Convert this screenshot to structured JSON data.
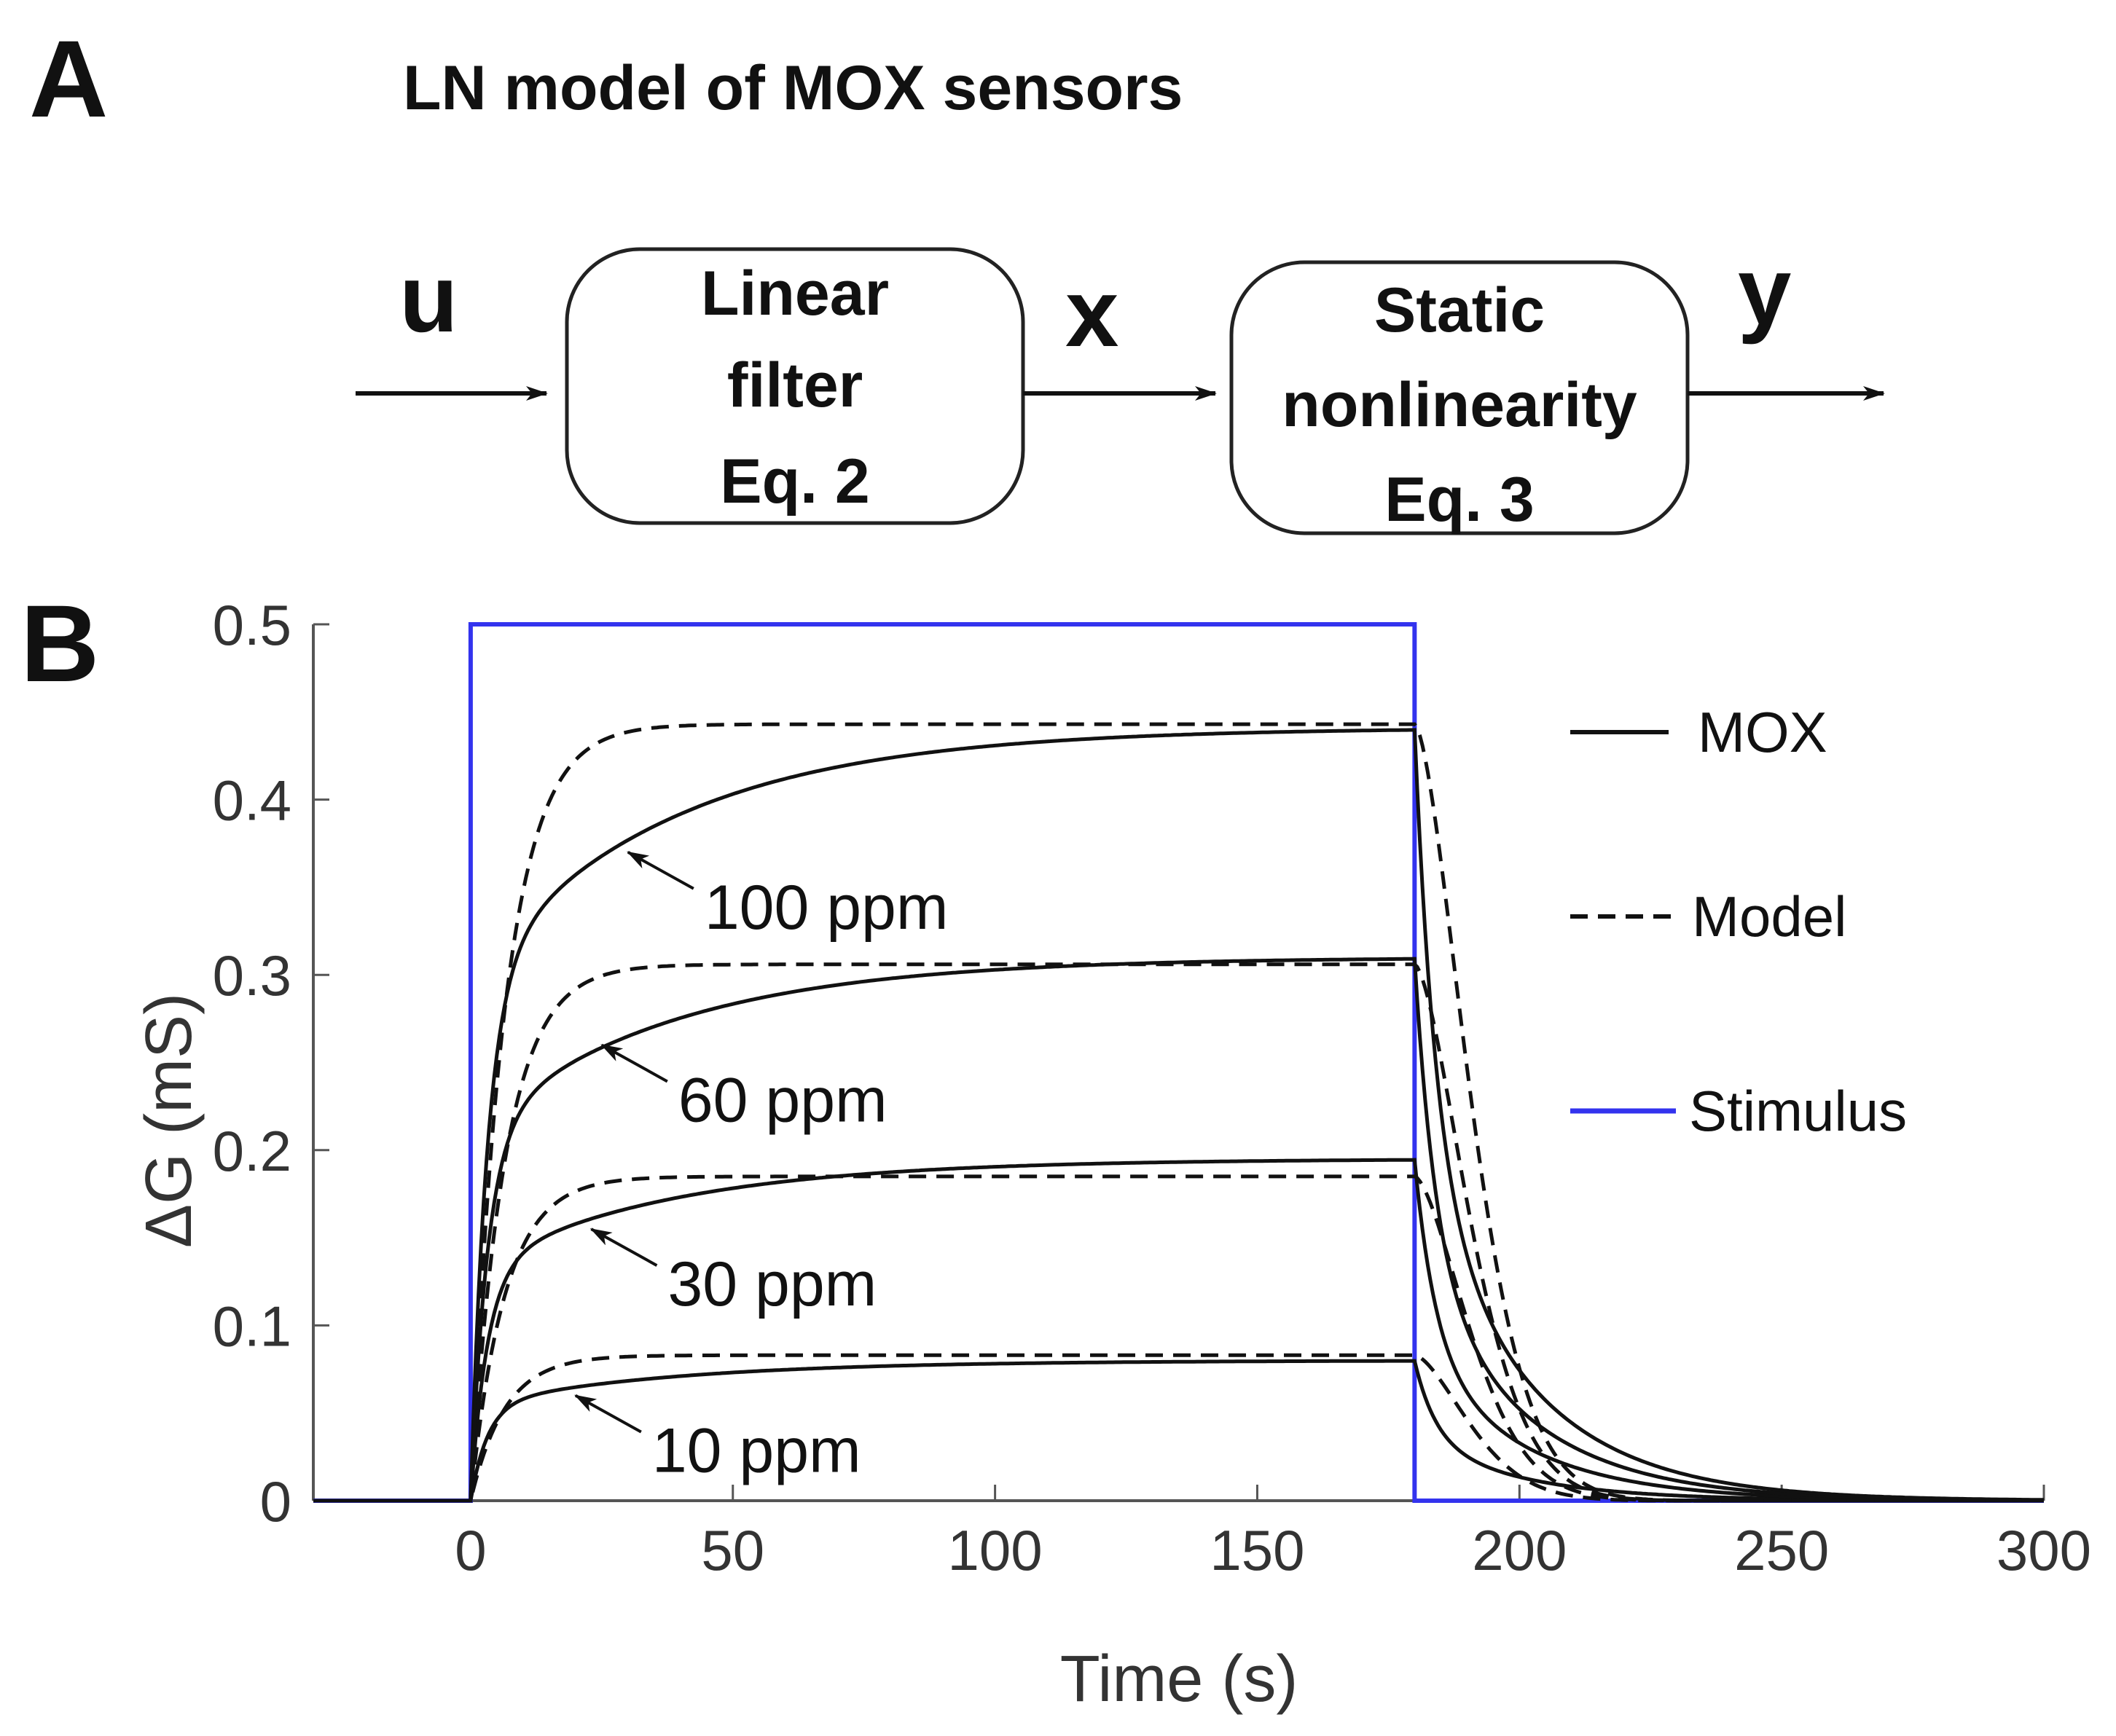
{
  "panel_a": {
    "letter": "A",
    "title": "LN model of MOX sensors",
    "signals": {
      "input": "u",
      "intermediate": "x",
      "output": "y"
    },
    "boxes": [
      {
        "lines": [
          "Linear",
          "filter",
          "Eq. 2"
        ]
      },
      {
        "lines": [
          "Static",
          "nonlinearity",
          "Eq. 3"
        ]
      }
    ]
  },
  "panel_b": {
    "letter": "B"
  },
  "colors": {
    "stimulus": "#3333ee",
    "mox": "#111111",
    "model": "#111111",
    "axis": "#555555"
  },
  "chart_data": {
    "type": "line",
    "xlabel": "Time (s)",
    "ylabel": "ΔG (mS)",
    "xlim": [
      -30,
      300
    ],
    "ylim": [
      0,
      0.5
    ],
    "xticks": [
      0,
      50,
      100,
      150,
      200,
      250,
      300
    ],
    "yticks": [
      0,
      0.1,
      0.2,
      0.3,
      0.4,
      0.5
    ],
    "ytick_labels": [
      "0",
      "0.1",
      "0.2",
      "0.3",
      "0.4",
      "0.5"
    ],
    "legend": [
      {
        "label": "MOX",
        "style": "solid"
      },
      {
        "label": "Model",
        "style": "dashed"
      },
      {
        "label": "Stimulus",
        "style": "blue"
      }
    ],
    "stimulus": {
      "on": 0,
      "off": 180,
      "level": 0.5
    },
    "series": [
      {
        "concentration": "10 ppm",
        "mox_plateau": 0.08,
        "model_plateau": 0.083,
        "label_point": [
          20,
          0.06
        ]
      },
      {
        "concentration": "30 ppm",
        "mox_plateau": 0.195,
        "model_plateau": 0.185,
        "label_point": [
          23,
          0.155
        ]
      },
      {
        "concentration": "60 ppm",
        "mox_plateau": 0.31,
        "model_plateau": 0.306,
        "label_point": [
          25,
          0.26
        ]
      },
      {
        "concentration": "100 ppm",
        "mox_plateau": 0.441,
        "model_plateau": 0.443,
        "label_point": [
          30,
          0.37
        ]
      }
    ],
    "annotations": [
      "10 ppm",
      "30 ppm",
      "60 ppm",
      "100 ppm"
    ]
  }
}
